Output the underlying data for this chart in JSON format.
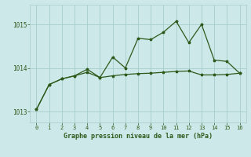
{
  "line1_x": [
    0,
    1,
    2,
    3,
    4,
    5,
    6,
    7,
    8,
    9,
    10,
    11,
    12,
    13,
    14,
    15,
    16
  ],
  "line1_y": [
    1013.05,
    1013.62,
    1013.75,
    1013.82,
    1013.9,
    1013.78,
    1013.82,
    1013.85,
    1013.87,
    1013.88,
    1013.9,
    1013.92,
    1013.93,
    1013.84,
    1013.84,
    1013.85,
    1013.88
  ],
  "line2_x": [
    0,
    1,
    2,
    3,
    4,
    5,
    6,
    7,
    8,
    9,
    10,
    11,
    12,
    13,
    14,
    15,
    16
  ],
  "line2_y": [
    1013.05,
    1013.62,
    1013.75,
    1013.82,
    1013.97,
    1013.78,
    1014.25,
    1014.0,
    1014.68,
    1014.65,
    1014.82,
    1015.07,
    1014.58,
    1015.0,
    1014.18,
    1014.15,
    1013.88
  ],
  "line_color": "#2d5a1b",
  "bg_color": "#cce8e8",
  "grid_color": "#a8cccc",
  "xlabel": "Graphe pression niveau de la mer (hPa)",
  "xlim": [
    -0.5,
    16.5
  ],
  "ylim": [
    1012.75,
    1015.45
  ],
  "yticks": [
    1013,
    1014,
    1015
  ],
  "xticks": [
    0,
    1,
    2,
    3,
    4,
    5,
    6,
    7,
    8,
    9,
    10,
    11,
    12,
    13,
    14,
    15,
    16
  ]
}
